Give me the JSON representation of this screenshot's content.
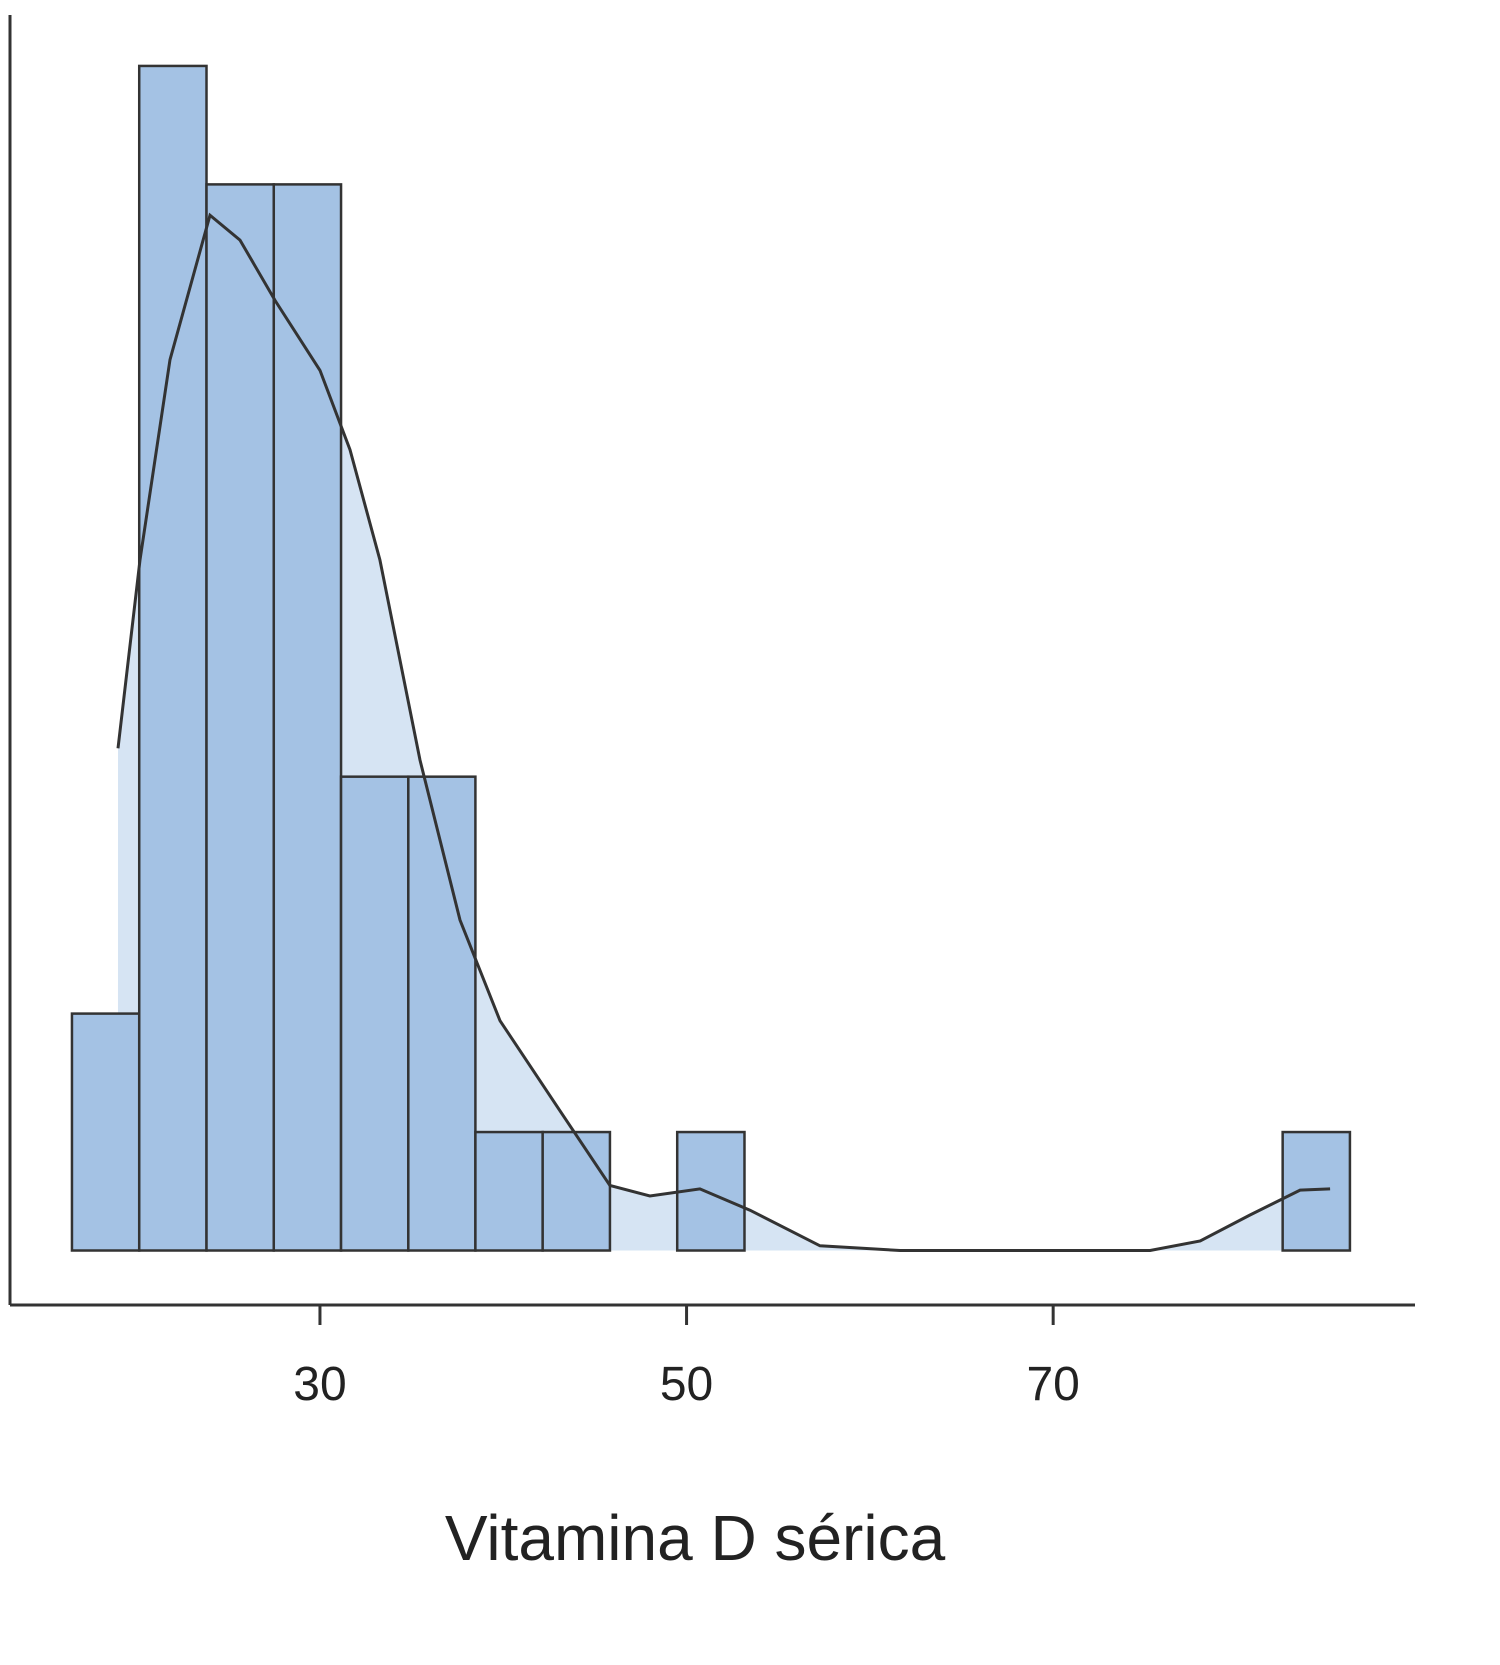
{
  "chart_data": {
    "type": "histogram",
    "x_label": "Vitamina D sérica",
    "bins": [
      16.47,
      20.14,
      23.81,
      27.48,
      31.15,
      34.82,
      38.48,
      42.15,
      45.82,
      49.49,
      53.16,
      56.83,
      60.5,
      64.17,
      67.84,
      71.51,
      75.18,
      78.85,
      82.52,
      86.19
    ],
    "counts": [
      2,
      10,
      9,
      9,
      4,
      4,
      1,
      1,
      0,
      1,
      0,
      0,
      0,
      0,
      0,
      0,
      0,
      0,
      1
    ],
    "color": "#a4c2e4",
    "edge_color": "#333333",
    "density": {
      "color": "#333333",
      "fill": "#d6e4f3",
      "x": [
        18.98,
        20.18,
        21.82,
        24.0,
        25.64,
        27.55,
        30.0,
        31.64,
        33.27,
        35.46,
        37.64,
        39.82,
        43.09,
        45.82,
        48.0,
        50.73,
        53.46,
        57.28,
        61.65,
        75.29,
        78.02,
        80.74,
        83.47,
        85.11
      ],
      "y": [
        4.24,
        5.83,
        7.52,
        8.74,
        8.53,
        8.02,
        7.43,
        6.76,
        5.83,
        4.14,
        2.79,
        1.94,
        1.18,
        0.55,
        0.46,
        0.52,
        0.34,
        0.04,
        0,
        0,
        0.08,
        0.3,
        0.51,
        0.52
      ]
    },
    "xlim": [
      13.09,
      89.74
    ],
    "xticks": [
      30,
      50,
      70
    ],
    "ylim": [
      -0.46,
      10.43
    ]
  }
}
